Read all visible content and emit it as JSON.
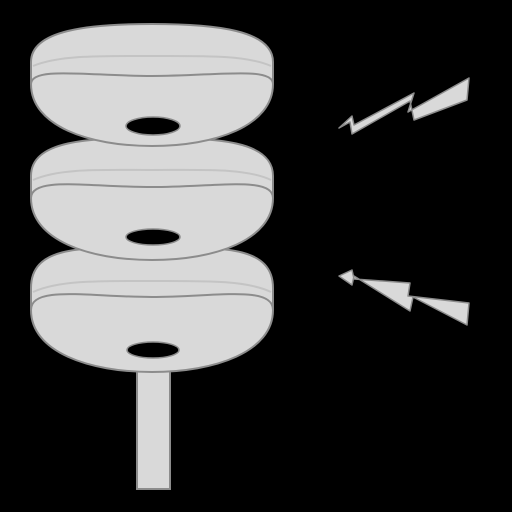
{
  "diagram": {
    "background_color": "#000000",
    "fill_color": "#d9d9d9",
    "stroke_color": "#8c8c8c",
    "highlight_color": "#c4c4c4",
    "hole_color": "#000000",
    "disc_count": 3,
    "spark_count": 2,
    "icon_names": [
      "insulator-disc-icon",
      "insulator-pin-icon",
      "lightning-spark-icon"
    ]
  }
}
